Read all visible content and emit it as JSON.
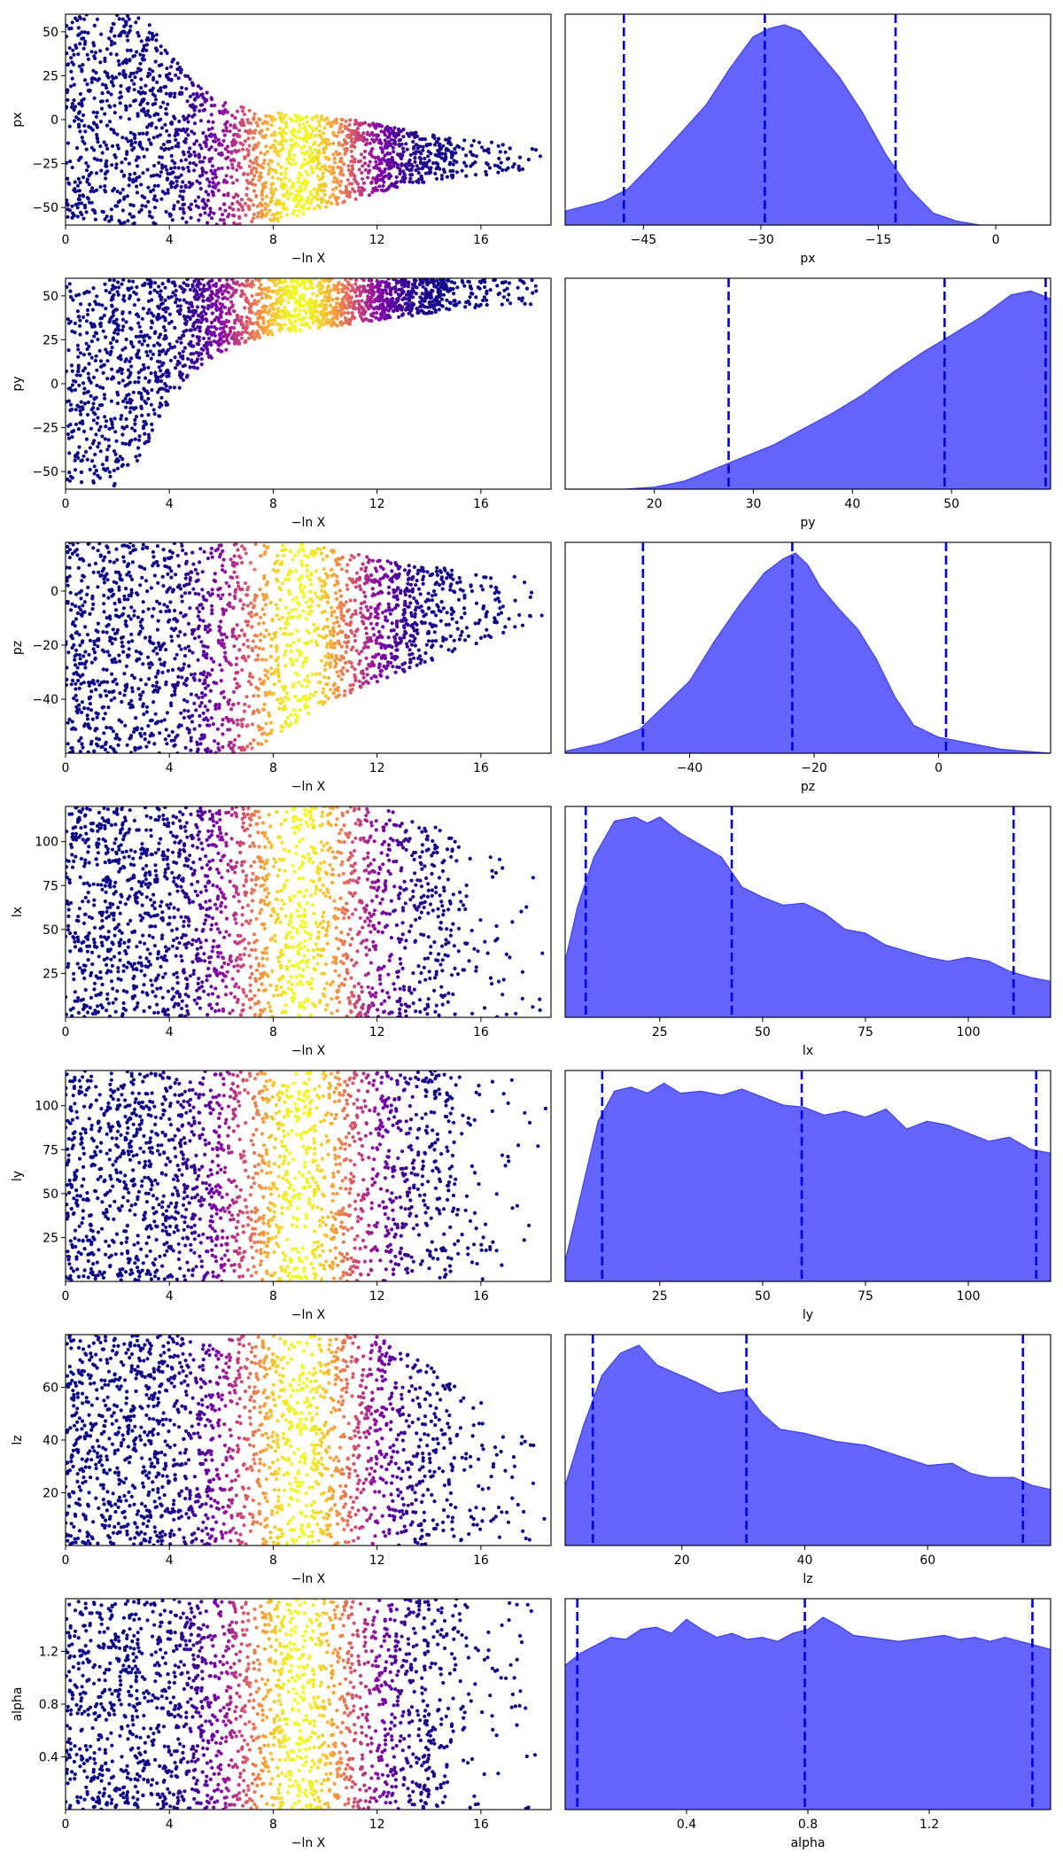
{
  "chart_data": [
    {
      "type": "scatter",
      "ylabel": "px",
      "xlabel": "−ln X",
      "xlim": [
        0,
        18.7
      ],
      "ylim": [
        -60,
        60
      ],
      "xticks": [
        0,
        4,
        8,
        12,
        16
      ],
      "yticks": [
        50,
        25,
        0,
        -25,
        -50
      ],
      "envelope": {
        "upper": [
          [
            0,
            60
          ],
          [
            1.5,
            60
          ],
          [
            2.5,
            60
          ],
          [
            3.2,
            55
          ],
          [
            4,
            38
          ],
          [
            5,
            22
          ],
          [
            6,
            12
          ],
          [
            7,
            6
          ],
          [
            8,
            4
          ],
          [
            10,
            2
          ],
          [
            12,
            -2
          ],
          [
            14,
            -8
          ],
          [
            16,
            -12
          ],
          [
            18,
            -16
          ]
        ],
        "lower": [
          [
            0,
            -60
          ],
          [
            7,
            -60
          ],
          [
            8,
            -58
          ],
          [
            9,
            -55
          ],
          [
            10,
            -50
          ],
          [
            11,
            -46
          ],
          [
            12,
            -42
          ],
          [
            13,
            -38
          ],
          [
            14,
            -35
          ],
          [
            16,
            -32
          ],
          [
            18,
            -28
          ]
        ]
      },
      "color_peak": 9,
      "color_width": 1.9,
      "max_x": 18.5
    },
    {
      "type": "area",
      "xlabel": "px",
      "xlim": [
        -55,
        7
      ],
      "xticks": [
        -45,
        -30,
        -15,
        0
      ],
      "density": [
        [
          -55,
          0.07
        ],
        [
          -50,
          0.12
        ],
        [
          -47,
          0.18
        ],
        [
          -44,
          0.3
        ],
        [
          -40,
          0.47
        ],
        [
          -37,
          0.6
        ],
        [
          -34,
          0.78
        ],
        [
          -31,
          0.94
        ],
        [
          -29,
          0.98
        ],
        [
          -27,
          1.0
        ],
        [
          -25,
          0.97
        ],
        [
          -23,
          0.88
        ],
        [
          -20,
          0.74
        ],
        [
          -17,
          0.56
        ],
        [
          -14,
          0.35
        ],
        [
          -11,
          0.18
        ],
        [
          -8,
          0.06
        ],
        [
          -5,
          0.02
        ],
        [
          -2,
          0.0
        ],
        [
          2,
          0.0
        ],
        [
          7,
          0.0
        ]
      ],
      "quantiles": [
        -47.5,
        -29.5,
        -12.8
      ]
    },
    {
      "type": "scatter",
      "ylabel": "py",
      "xlabel": "−ln X",
      "xlim": [
        0,
        18.7
      ],
      "ylim": [
        -60,
        60
      ],
      "xticks": [
        0,
        4,
        8,
        12,
        16
      ],
      "yticks": [
        50,
        25,
        0,
        -25,
        -50
      ],
      "envelope": {
        "upper": [
          [
            0,
            60
          ],
          [
            18,
            60
          ]
        ],
        "lower": [
          [
            0,
            -60
          ],
          [
            2,
            -60
          ],
          [
            3,
            -40
          ],
          [
            4,
            -10
          ],
          [
            5,
            8
          ],
          [
            6,
            18
          ],
          [
            7,
            24
          ],
          [
            8,
            28
          ],
          [
            9,
            30
          ],
          [
            10,
            32
          ],
          [
            12,
            36
          ],
          [
            14,
            40
          ],
          [
            16,
            43
          ],
          [
            18,
            44
          ]
        ]
      },
      "color_peak": 9,
      "color_width": 1.9,
      "max_x": 18.5
    },
    {
      "type": "area",
      "xlabel": "py",
      "xlim": [
        11,
        60
      ],
      "xticks": [
        20,
        30,
        40,
        50
      ],
      "density": [
        [
          11,
          0
        ],
        [
          17,
          0
        ],
        [
          20,
          0.01
        ],
        [
          23,
          0.04
        ],
        [
          26,
          0.1
        ],
        [
          29,
          0.16
        ],
        [
          32,
          0.22
        ],
        [
          35,
          0.3
        ],
        [
          38,
          0.38
        ],
        [
          41,
          0.47
        ],
        [
          44,
          0.58
        ],
        [
          47,
          0.68
        ],
        [
          50,
          0.77
        ],
        [
          53,
          0.86
        ],
        [
          56,
          0.97
        ],
        [
          58,
          0.99
        ],
        [
          60,
          0.95
        ]
      ],
      "quantiles": [
        27.5,
        49.3,
        59.5
      ]
    },
    {
      "type": "scatter",
      "ylabel": "pz",
      "xlabel": "−ln X",
      "xlim": [
        0,
        18.7
      ],
      "ylim": [
        -60,
        18
      ],
      "xticks": [
        0,
        4,
        8,
        12,
        16
      ],
      "yticks": [
        0,
        -20,
        -40
      ],
      "envelope": {
        "upper": [
          [
            0,
            18
          ],
          [
            9,
            18
          ],
          [
            11,
            14
          ],
          [
            13,
            10
          ],
          [
            15,
            8
          ],
          [
            17,
            6
          ],
          [
            18,
            4
          ]
        ],
        "lower": [
          [
            0,
            -60
          ],
          [
            7,
            -60
          ],
          [
            8,
            -54
          ],
          [
            9,
            -48
          ],
          [
            10,
            -42
          ],
          [
            11,
            -38
          ],
          [
            12,
            -34
          ],
          [
            13,
            -30
          ],
          [
            14,
            -26
          ],
          [
            16,
            -20
          ],
          [
            18,
            -14
          ]
        ]
      },
      "color_peak": 9,
      "color_width": 1.9,
      "max_x": 18.5
    },
    {
      "type": "area",
      "xlabel": "pz",
      "xlim": [
        -60,
        18
      ],
      "xticks": [
        -40,
        -20,
        0
      ],
      "density": [
        [
          -60,
          0.01
        ],
        [
          -54,
          0.05
        ],
        [
          -48,
          0.12
        ],
        [
          -43,
          0.27
        ],
        [
          -40,
          0.36
        ],
        [
          -36,
          0.56
        ],
        [
          -32,
          0.74
        ],
        [
          -28,
          0.9
        ],
        [
          -25,
          0.97
        ],
        [
          -23,
          1.0
        ],
        [
          -21,
          0.94
        ],
        [
          -19,
          0.83
        ],
        [
          -16,
          0.72
        ],
        [
          -13,
          0.62
        ],
        [
          -10,
          0.47
        ],
        [
          -7,
          0.28
        ],
        [
          -4,
          0.14
        ],
        [
          0,
          0.08
        ],
        [
          5,
          0.05
        ],
        [
          10,
          0.02
        ],
        [
          18,
          0.0
        ]
      ],
      "quantiles": [
        -47.5,
        -23.5,
        1.2
      ]
    },
    {
      "type": "scatter",
      "ylabel": "lx",
      "xlabel": "−ln X",
      "xlim": [
        0,
        18.7
      ],
      "ylim": [
        0,
        120
      ],
      "xticks": [
        0,
        4,
        8,
        12,
        16
      ],
      "yticks": [
        100,
        75,
        50,
        25
      ],
      "envelope": {
        "upper": [
          [
            0,
            120
          ],
          [
            12,
            120
          ],
          [
            14,
            110
          ],
          [
            16,
            100
          ],
          [
            18,
            90
          ]
        ],
        "lower": [
          [
            0,
            0
          ],
          [
            18,
            0
          ]
        ]
      },
      "color_peak": 9,
      "color_width": 1.9,
      "max_x": 18.5
    },
    {
      "type": "area",
      "xlabel": "lx",
      "xlim": [
        2,
        120
      ],
      "xticks": [
        25,
        50,
        75,
        100
      ],
      "density": [
        [
          2,
          0.28
        ],
        [
          5,
          0.55
        ],
        [
          9,
          0.8
        ],
        [
          14,
          0.98
        ],
        [
          19,
          1.0
        ],
        [
          22,
          0.97
        ],
        [
          25,
          1.0
        ],
        [
          30,
          0.92
        ],
        [
          35,
          0.86
        ],
        [
          40,
          0.8
        ],
        [
          45,
          0.65
        ],
        [
          50,
          0.6
        ],
        [
          55,
          0.56
        ],
        [
          60,
          0.57
        ],
        [
          65,
          0.52
        ],
        [
          70,
          0.44
        ],
        [
          75,
          0.42
        ],
        [
          80,
          0.36
        ],
        [
          85,
          0.33
        ],
        [
          90,
          0.3
        ],
        [
          95,
          0.28
        ],
        [
          100,
          0.3
        ],
        [
          105,
          0.28
        ],
        [
          110,
          0.23
        ],
        [
          115,
          0.2
        ],
        [
          120,
          0.18
        ]
      ],
      "quantiles": [
        7,
        42.5,
        111
      ]
    },
    {
      "type": "scatter",
      "ylabel": "ly",
      "xlabel": "−ln X",
      "xlim": [
        0,
        18.7
      ],
      "ylim": [
        0,
        120
      ],
      "xticks": [
        0,
        4,
        8,
        12,
        16
      ],
      "yticks": [
        100,
        75,
        50,
        25
      ],
      "envelope": {
        "upper": [
          [
            0,
            120
          ],
          [
            18,
            120
          ]
        ],
        "lower": [
          [
            0,
            0
          ],
          [
            18,
            0
          ]
        ]
      },
      "color_peak": 9,
      "color_width": 1.9,
      "max_x": 18.5
    },
    {
      "type": "area",
      "xlabel": "ly",
      "xlim": [
        2,
        120
      ],
      "xticks": [
        25,
        50,
        75,
        100
      ],
      "density": [
        [
          2,
          0.1
        ],
        [
          6,
          0.45
        ],
        [
          10,
          0.8
        ],
        [
          14,
          0.95
        ],
        [
          18,
          0.97
        ],
        [
          22,
          0.94
        ],
        [
          26,
          0.99
        ],
        [
          30,
          0.94
        ],
        [
          35,
          0.95
        ],
        [
          40,
          0.93
        ],
        [
          45,
          0.96
        ],
        [
          50,
          0.92
        ],
        [
          55,
          0.88
        ],
        [
          60,
          0.87
        ],
        [
          65,
          0.83
        ],
        [
          70,
          0.85
        ],
        [
          75,
          0.82
        ],
        [
          80,
          0.86
        ],
        [
          85,
          0.76
        ],
        [
          90,
          0.8
        ],
        [
          95,
          0.78
        ],
        [
          100,
          0.74
        ],
        [
          105,
          0.7
        ],
        [
          110,
          0.72
        ],
        [
          115,
          0.66
        ],
        [
          120,
          0.64
        ]
      ],
      "quantiles": [
        11,
        59.5,
        116.5
      ]
    },
    {
      "type": "scatter",
      "ylabel": "lz",
      "xlabel": "−ln X",
      "xlim": [
        0,
        18.7
      ],
      "ylim": [
        0,
        80
      ],
      "xticks": [
        0,
        4,
        8,
        12,
        16
      ],
      "yticks": [
        60,
        40,
        20
      ],
      "envelope": {
        "upper": [
          [
            0,
            80
          ],
          [
            12,
            80
          ],
          [
            14,
            68
          ],
          [
            16,
            55
          ],
          [
            18,
            40
          ]
        ],
        "lower": [
          [
            0,
            0
          ],
          [
            18,
            0
          ]
        ]
      },
      "color_peak": 9,
      "color_width": 1.9,
      "max_x": 18.5
    },
    {
      "type": "area",
      "xlabel": "lz",
      "xlim": [
        1,
        80
      ],
      "xticks": [
        20,
        40,
        60
      ],
      "density": [
        [
          1,
          0.3
        ],
        [
          4,
          0.6
        ],
        [
          7,
          0.85
        ],
        [
          10,
          0.96
        ],
        [
          13,
          1.0
        ],
        [
          16,
          0.9
        ],
        [
          19,
          0.86
        ],
        [
          22,
          0.82
        ],
        [
          26,
          0.76
        ],
        [
          30,
          0.78
        ],
        [
          33,
          0.66
        ],
        [
          36,
          0.58
        ],
        [
          40,
          0.56
        ],
        [
          45,
          0.52
        ],
        [
          50,
          0.5
        ],
        [
          55,
          0.45
        ],
        [
          60,
          0.4
        ],
        [
          64,
          0.41
        ],
        [
          67,
          0.36
        ],
        [
          70,
          0.34
        ],
        [
          74,
          0.34
        ],
        [
          77,
          0.3
        ],
        [
          80,
          0.28
        ]
      ],
      "quantiles": [
        5.5,
        30.5,
        75.5
      ]
    },
    {
      "type": "scatter",
      "ylabel": "alpha",
      "xlabel": "−ln X",
      "xlim": [
        0,
        18.7
      ],
      "ylim": [
        0,
        1.6
      ],
      "xticks": [
        0,
        4,
        8,
        12,
        16
      ],
      "yticks": [
        1.2,
        0.8,
        0.4
      ],
      "envelope": {
        "upper": [
          [
            0,
            1.6
          ],
          [
            18,
            1.6
          ]
        ],
        "lower": [
          [
            0,
            0
          ],
          [
            18,
            0
          ]
        ]
      },
      "color_peak": 9,
      "color_width": 1.9,
      "max_x": 18.5
    },
    {
      "type": "area",
      "xlabel": "alpha",
      "xlim": [
        0,
        1.6
      ],
      "xticks": [
        0.4,
        0.8,
        1.2
      ],
      "density": [
        [
          0,
          0.72
        ],
        [
          0.05,
          0.78
        ],
        [
          0.1,
          0.82
        ],
        [
          0.15,
          0.86
        ],
        [
          0.2,
          0.85
        ],
        [
          0.25,
          0.9
        ],
        [
          0.3,
          0.91
        ],
        [
          0.35,
          0.88
        ],
        [
          0.4,
          0.95
        ],
        [
          0.45,
          0.9
        ],
        [
          0.5,
          0.86
        ],
        [
          0.55,
          0.88
        ],
        [
          0.6,
          0.85
        ],
        [
          0.65,
          0.86
        ],
        [
          0.7,
          0.84
        ],
        [
          0.75,
          0.88
        ],
        [
          0.8,
          0.9
        ],
        [
          0.85,
          0.96
        ],
        [
          0.9,
          0.92
        ],
        [
          0.95,
          0.87
        ],
        [
          1.0,
          0.86
        ],
        [
          1.05,
          0.85
        ],
        [
          1.1,
          0.84
        ],
        [
          1.15,
          0.85
        ],
        [
          1.2,
          0.86
        ],
        [
          1.25,
          0.87
        ],
        [
          1.3,
          0.85
        ],
        [
          1.35,
          0.86
        ],
        [
          1.4,
          0.84
        ],
        [
          1.45,
          0.86
        ],
        [
          1.5,
          0.84
        ],
        [
          1.55,
          0.82
        ],
        [
          1.6,
          0.8
        ]
      ],
      "quantiles": [
        0.04,
        0.79,
        1.54
      ]
    }
  ]
}
